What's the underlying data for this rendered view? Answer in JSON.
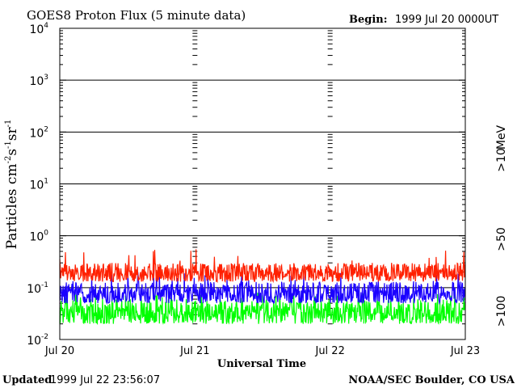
{
  "chart_data": {
    "type": "line",
    "title": "GOES8 Proton Flux (5 minute data)",
    "begin_label": "Begin:",
    "begin_value": "1999 Jul 20 0000UT",
    "xlabel": "Universal Time",
    "ylabel": {
      "base": "Particles cm",
      "exp1": "-2",
      "mid1": "s",
      "exp2": "-1",
      "mid2": "sr",
      "exp3": "-1"
    },
    "y_scale": "log",
    "ylim": [
      0.01,
      10000
    ],
    "y_ticks": [
      {
        "base": "10",
        "exp": "4",
        "value": 10000
      },
      {
        "base": "10",
        "exp": "3",
        "value": 1000
      },
      {
        "base": "10",
        "exp": "2",
        "value": 100
      },
      {
        "base": "10",
        "exp": "1",
        "value": 10
      },
      {
        "base": "10",
        "exp": "0",
        "value": 1
      },
      {
        "base": "10",
        "exp": "-1",
        "value": 0.1
      },
      {
        "base": "10",
        "exp": "-2",
        "value": 0.01
      }
    ],
    "xlim": [
      "1999-07-20",
      "1999-07-23"
    ],
    "x_ticks": [
      {
        "label": "Jul 20",
        "day": "1999-07-20"
      },
      {
        "label": "Jul 21",
        "day": "1999-07-21"
      },
      {
        "label": "Jul 22",
        "day": "1999-07-22"
      },
      {
        "label": "Jul 23",
        "day": "1999-07-23"
      }
    ],
    "grid": true,
    "series": [
      {
        "name": ">10",
        "color": "#ff2000",
        "typical_low": 0.13,
        "typical_high": 0.3,
        "max": 0.55
      },
      {
        "name": ">50",
        "color": "#1a00ff",
        "typical_low": 0.05,
        "typical_high": 0.13,
        "max": 0.2
      },
      {
        "name": ">100",
        "color": "#00ff00",
        "typical_low": 0.02,
        "typical_high": 0.06,
        "max": 0.08
      }
    ],
    "unit": "MeV"
  },
  "footer": {
    "updated_label": "Updated",
    "updated_value": "1999 Jul 22 23:56:07",
    "credit": "NOAA/SEC Boulder, CO USA"
  }
}
